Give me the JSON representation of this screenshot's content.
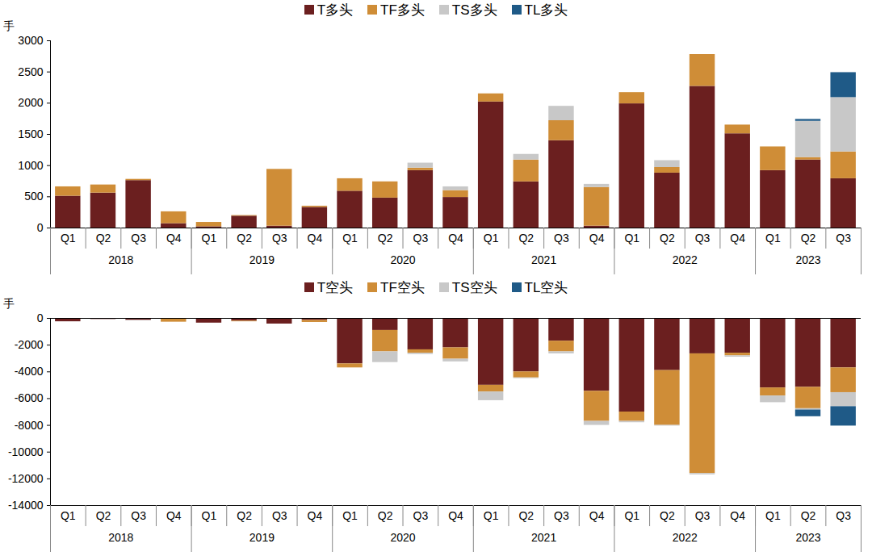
{
  "chart_data": [
    {
      "type": "bar",
      "stacked": true,
      "legend": "top",
      "y_label": "手",
      "categories": [
        "Q1",
        "Q2",
        "Q3",
        "Q4",
        "Q1",
        "Q2",
        "Q3",
        "Q4",
        "Q1",
        "Q2",
        "Q3",
        "Q4",
        "Q1",
        "Q2",
        "Q3",
        "Q4",
        "Q1",
        "Q2",
        "Q3",
        "Q4",
        "Q1",
        "Q2",
        "Q3"
      ],
      "category_groups": [
        {
          "label": "2018",
          "count": 4
        },
        {
          "label": "2019",
          "count": 4
        },
        {
          "label": "2020",
          "count": 4
        },
        {
          "label": "2021",
          "count": 4
        },
        {
          "label": "2022",
          "count": 4
        },
        {
          "label": "2023",
          "count": 3
        }
      ],
      "ylim": [
        0,
        3000
      ],
      "yticks": [
        0,
        500,
        1000,
        1500,
        2000,
        2500,
        3000
      ],
      "series": [
        {
          "name": "T多头",
          "color": "#6b1f1f",
          "values": [
            510,
            560,
            760,
            70,
            20,
            190,
            30,
            330,
            590,
            480,
            920,
            490,
            2020,
            740,
            1400,
            30,
            1990,
            880,
            2270,
            1510,
            920,
            1090,
            790
          ]
        },
        {
          "name": "TF多头",
          "color": "#cf8d37",
          "values": [
            150,
            130,
            20,
            190,
            70,
            10,
            910,
            20,
            200,
            260,
            40,
            110,
            130,
            350,
            320,
            620,
            180,
            90,
            510,
            140,
            380,
            40,
            430
          ]
        },
        {
          "name": "TS多头",
          "color": "#c8c8c8",
          "values": [
            0,
            0,
            0,
            0,
            0,
            0,
            0,
            0,
            0,
            0,
            80,
            60,
            0,
            90,
            230,
            50,
            0,
            110,
            0,
            0,
            0,
            580,
            870
          ]
        },
        {
          "name": "TL多头",
          "color": "#1f5a87",
          "values": [
            0,
            0,
            0,
            0,
            0,
            0,
            0,
            0,
            0,
            0,
            0,
            0,
            0,
            0,
            0,
            0,
            0,
            0,
            0,
            0,
            0,
            30,
            400
          ]
        }
      ]
    },
    {
      "type": "bar",
      "stacked": true,
      "legend": "top",
      "y_label": "手",
      "categories": [
        "Q1",
        "Q2",
        "Q3",
        "Q4",
        "Q1",
        "Q2",
        "Q3",
        "Q4",
        "Q1",
        "Q2",
        "Q3",
        "Q4",
        "Q1",
        "Q2",
        "Q3",
        "Q4",
        "Q1",
        "Q2",
        "Q3",
        "Q4",
        "Q1",
        "Q2",
        "Q3"
      ],
      "category_groups": [
        {
          "label": "2018",
          "count": 4
        },
        {
          "label": "2019",
          "count": 4
        },
        {
          "label": "2020",
          "count": 4
        },
        {
          "label": "2021",
          "count": 4
        },
        {
          "label": "2022",
          "count": 4
        },
        {
          "label": "2023",
          "count": 3
        }
      ],
      "ylim": [
        -14000,
        0
      ],
      "yticks": [
        -14000,
        -12000,
        -10000,
        -8000,
        -6000,
        -4000,
        -2000,
        0
      ],
      "series": [
        {
          "name": "T空头",
          "color": "#6b1f1f",
          "values": [
            -250,
            -80,
            -150,
            -30,
            -350,
            -200,
            -420,
            -150,
            -3400,
            -900,
            -2350,
            -2200,
            -5000,
            -4000,
            -1700,
            -5450,
            -7000,
            -3900,
            -2650,
            -2600,
            -5200,
            -5150,
            -3700
          ]
        },
        {
          "name": "TF空头",
          "color": "#cf8d37",
          "values": [
            0,
            0,
            0,
            -250,
            0,
            -50,
            0,
            -150,
            -300,
            -1600,
            -250,
            -850,
            -500,
            -450,
            -800,
            -2250,
            -700,
            -4100,
            -8950,
            -200,
            -600,
            -1600,
            -1850
          ]
        },
        {
          "name": "TS空头",
          "color": "#c8c8c8",
          "values": [
            0,
            0,
            -30,
            0,
            0,
            0,
            0,
            0,
            0,
            -800,
            -100,
            -200,
            -650,
            -50,
            -150,
            -300,
            -100,
            -50,
            -100,
            -100,
            -500,
            -100,
            -1050
          ]
        },
        {
          "name": "TL空头",
          "color": "#1f5a87",
          "values": [
            0,
            0,
            0,
            0,
            0,
            0,
            0,
            0,
            0,
            0,
            0,
            0,
            0,
            0,
            0,
            0,
            0,
            0,
            0,
            0,
            0,
            -500,
            -1450
          ]
        }
      ]
    }
  ]
}
